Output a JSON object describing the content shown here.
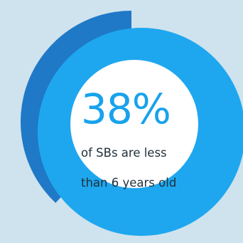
{
  "chart_data": {
    "type": "pie",
    "title": "",
    "slices": [
      {
        "label": "of SBs are less than 6 years old",
        "value": 38
      },
      {
        "label": "",
        "value": 62
      }
    ],
    "colors": {
      "highlight_arc": "#1f79c7",
      "ring": "#1ea7ef",
      "center": "#ffffff",
      "background": "#cfe3ee"
    }
  },
  "stat": {
    "value": "38%",
    "caption_line1": "of SBs are less",
    "caption_line2": "than 6 years old"
  }
}
